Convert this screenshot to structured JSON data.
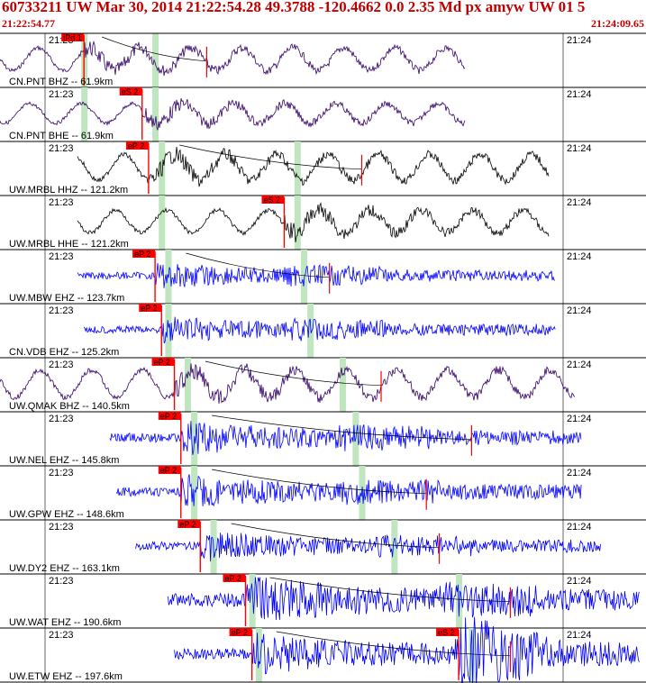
{
  "header": {
    "title": "60733211 UW Mar 30, 2014 21:22:54.28   49.3788 -120.4662  0.0 2.35 Md px amyw UW 01   5",
    "start_time": "21:22:54.77",
    "end_time": "21:24:09.65"
  },
  "tick_labels": {
    "left": "21:23",
    "right": "21:24"
  },
  "colors": {
    "pick_box": "#ff0000",
    "green_marker": "#bfe6bf",
    "trace_dark": "#000000",
    "trace_purple": "#330066",
    "trace_blue": "#0000ff"
  },
  "traces": [
    {
      "station": "CN.PNT BHZ -- 61.9km",
      "color": "purple",
      "start": 0.0,
      "end": 0.72,
      "amp": 14,
      "p": {
        "label": "iPd 1",
        "pos": 0.13
      },
      "s": null,
      "green": [
        0.13,
        0.24
      ],
      "coda": 0.32,
      "lowfreq": true
    },
    {
      "station": "CN.PNT BHE -- 61.9km",
      "color": "purple",
      "start": 0.0,
      "end": 0.72,
      "amp": 12,
      "p": null,
      "s": {
        "label": "eS 2",
        "pos": 0.22
      },
      "green": [
        0.13,
        0.24
      ],
      "coda": null,
      "lowfreq": true
    },
    {
      "station": "UW.MRBL HHZ -- 121.2km",
      "color": "black",
      "start": 0.12,
      "end": 0.85,
      "amp": 16,
      "p": {
        "label": "eP 2",
        "pos": 0.23
      },
      "s": null,
      "green": [
        0.25,
        0.46
      ],
      "coda": 0.56,
      "lowfreq": true
    },
    {
      "station": "UW.MRBL HHE -- 121.2km",
      "color": "black",
      "start": 0.12,
      "end": 0.85,
      "amp": 14,
      "p": null,
      "s": {
        "label": "eS 2",
        "pos": 0.44
      },
      "green": [
        0.25,
        0.46
      ],
      "coda": null,
      "lowfreq": true
    },
    {
      "station": "UW.MBW EHZ -- 123.7km",
      "color": "blue",
      "start": 0.12,
      "end": 0.86,
      "amp": 14,
      "p": {
        "label": "eP 2",
        "pos": 0.24
      },
      "s": null,
      "green": [
        0.26,
        0.47
      ],
      "coda": 0.51,
      "lowfreq": false
    },
    {
      "station": "CN.VDB EHZ -- 125.2km",
      "color": "blue",
      "start": 0.13,
      "end": 0.86,
      "amp": 14,
      "p": {
        "label": "eP 2",
        "pos": 0.25
      },
      "s": null,
      "green": [
        0.26,
        0.48
      ],
      "coda": null,
      "lowfreq": false
    },
    {
      "station": "UW.QMAK BHZ -- 140.5km",
      "color": "purple",
      "start": 0.0,
      "end": 0.89,
      "amp": 17,
      "p": {
        "label": "eP 2",
        "pos": 0.27
      },
      "s": null,
      "green": [
        0.29,
        0.53
      ],
      "coda": 0.59,
      "lowfreq": true
    },
    {
      "station": "UW.NEL EHZ -- 145.8km",
      "color": "blue",
      "start": 0.17,
      "end": 0.9,
      "amp": 18,
      "p": {
        "label": "eP 2",
        "pos": 0.28
      },
      "s": null,
      "green": [
        0.3,
        0.55
      ],
      "coda": 0.73,
      "lowfreq": false
    },
    {
      "station": "UW.GPW EHZ -- 148.6km",
      "color": "blue",
      "start": 0.18,
      "end": 0.9,
      "amp": 18,
      "p": {
        "label": "eP 2",
        "pos": 0.28
      },
      "s": null,
      "green": [
        0.3,
        0.56
      ],
      "coda": 0.66,
      "lowfreq": false
    },
    {
      "station": "UW.DY2 EHZ -- 163.1km",
      "color": "blue",
      "start": 0.21,
      "end": 0.93,
      "amp": 16,
      "p": {
        "label": "eP 2",
        "pos": 0.31
      },
      "s": null,
      "green": [
        0.33,
        0.61
      ],
      "coda": 0.68,
      "lowfreq": false
    },
    {
      "station": "UW.WAT EHZ -- 190.6km",
      "color": "blue",
      "start": 0.26,
      "end": 0.99,
      "amp": 26,
      "p": {
        "label": "eP 2",
        "pos": 0.38
      },
      "s": null,
      "green": [
        0.39,
        0.71
      ],
      "coda": 0.79,
      "lowfreq": false
    },
    {
      "station": "UW.ETW EHZ -- 197.6km",
      "color": "blue",
      "start": 0.27,
      "end": 0.99,
      "amp": 22,
      "p": {
        "label": "eP 2",
        "pos": 0.39
      },
      "s": {
        "label": "eS 2",
        "pos": 0.71
      },
      "green": [
        0.4,
        0.73
      ],
      "coda": 0.79,
      "lowfreq": false
    }
  ]
}
